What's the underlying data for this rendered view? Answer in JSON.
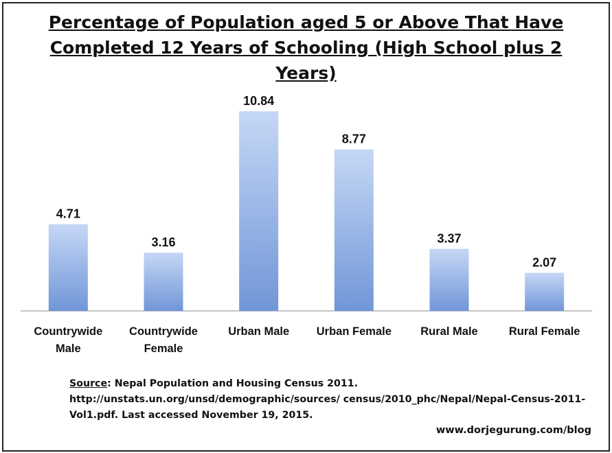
{
  "chart_data": {
    "type": "bar",
    "title_lines": [
      "Percentage of Population aged 5 or Above That Have",
      "Completed 12 Years of Schooling (High School plus 2",
      "Years)"
    ],
    "categories": [
      [
        "Countrywide",
        "Male"
      ],
      [
        "Countrywide",
        "Female"
      ],
      [
        "Urban Male"
      ],
      [
        "Urban Female"
      ],
      [
        "Rural Male"
      ],
      [
        "Rural Female"
      ]
    ],
    "values": [
      4.71,
      3.16,
      10.84,
      8.77,
      3.37,
      2.07
    ],
    "value_labels": [
      "4.71",
      "3.16",
      "10.84",
      "8.77",
      "3.37",
      "2.07"
    ],
    "xlabel": "",
    "ylabel": "",
    "ylim": [
      0,
      12
    ],
    "grid": false,
    "legend": "none",
    "bar_color_top": "#c5d7f5",
    "bar_color_bottom": "#7196d8"
  },
  "source": {
    "label": "Source",
    "text": ": Nepal Population and Housing Census 2011. http://unstats.un.org/unsd/demographic/sources/ census/2010_phc/Nepal/Nepal-Census-2011-Vol1.pdf. Last accessed November 19, 2015."
  },
  "credit": "www.dorjegurung.com/blog"
}
